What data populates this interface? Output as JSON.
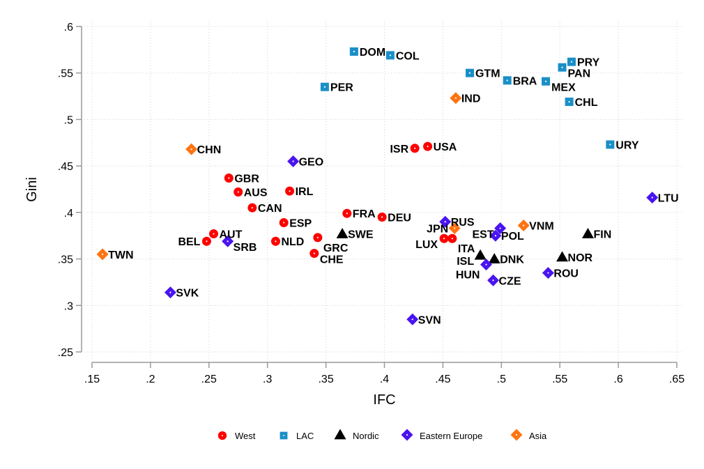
{
  "chart_data": {
    "type": "scatter",
    "title": "",
    "xlabel": "IFC",
    "ylabel": "Gini",
    "xlim": [
      0.15,
      0.65
    ],
    "ylim": [
      0.25,
      0.6
    ],
    "xticks": [
      ".15",
      ".2",
      ".25",
      ".3",
      ".35",
      ".4",
      ".45",
      ".5",
      ".55",
      ".6",
      ".65"
    ],
    "xtick_values": [
      0.15,
      0.2,
      0.25,
      0.3,
      0.35,
      0.4,
      0.45,
      0.5,
      0.55,
      0.6,
      0.65
    ],
    "yticks": [
      ".25",
      ".3",
      ".35",
      ".4",
      ".45",
      ".5",
      ".55",
      ".6"
    ],
    "ytick_values": [
      0.25,
      0.3,
      0.35,
      0.4,
      0.45,
      0.5,
      0.55,
      0.6
    ],
    "grid": true,
    "legend_position": "bottom",
    "series": [
      {
        "name": "West",
        "marker": "circle",
        "color": "#ff0000",
        "points": [
          {
            "label": "USA",
            "x": 0.437,
            "y": 0.471,
            "label_side": "right"
          },
          {
            "label": "ISR",
            "x": 0.426,
            "y": 0.469,
            "label_side": "left"
          },
          {
            "label": "GBR",
            "x": 0.267,
            "y": 0.437,
            "label_side": "right"
          },
          {
            "label": "AUS",
            "x": 0.275,
            "y": 0.422,
            "label_side": "right"
          },
          {
            "label": "IRL",
            "x": 0.319,
            "y": 0.423,
            "label_side": "right"
          },
          {
            "label": "CAN",
            "x": 0.287,
            "y": 0.405,
            "label_side": "right"
          },
          {
            "label": "FRA",
            "x": 0.368,
            "y": 0.399,
            "label_side": "right"
          },
          {
            "label": "DEU",
            "x": 0.398,
            "y": 0.395,
            "label_side": "right"
          },
          {
            "label": "ESP",
            "x": 0.314,
            "y": 0.389,
            "label_side": "right"
          },
          {
            "label": "AUT",
            "x": 0.254,
            "y": 0.377,
            "label_side": "right"
          },
          {
            "label": "BEL",
            "x": 0.248,
            "y": 0.369,
            "label_side": "left"
          },
          {
            "label": "NLD",
            "x": 0.307,
            "y": 0.369,
            "label_side": "right"
          },
          {
            "label": "GRC",
            "x": 0.343,
            "y": 0.373,
            "label_side": "right"
          },
          {
            "label": "CHE",
            "x": 0.34,
            "y": 0.356,
            "label_side": "right"
          },
          {
            "label": "LUX",
            "x": 0.451,
            "y": 0.372,
            "label_side": "left"
          },
          {
            "label": "ITA",
            "x": 0.458,
            "y": 0.372,
            "label_side": "right"
          }
        ]
      },
      {
        "name": "LAC",
        "marker": "square",
        "color": "#1a8fc7",
        "points": [
          {
            "label": "DOM",
            "x": 0.374,
            "y": 0.573,
            "label_side": "right"
          },
          {
            "label": "COL",
            "x": 0.405,
            "y": 0.569,
            "label_side": "right"
          },
          {
            "label": "PER",
            "x": 0.349,
            "y": 0.535,
            "label_side": "right"
          },
          {
            "label": "GTM",
            "x": 0.473,
            "y": 0.55,
            "label_side": "right"
          },
          {
            "label": "BRA",
            "x": 0.505,
            "y": 0.542,
            "label_side": "right"
          },
          {
            "label": "MEX",
            "x": 0.538,
            "y": 0.541,
            "label_side": "right"
          },
          {
            "label": "PAN",
            "x": 0.552,
            "y": 0.556,
            "label_side": "right"
          },
          {
            "label": "PRY",
            "x": 0.56,
            "y": 0.562,
            "label_side": "right"
          },
          {
            "label": "CHL",
            "x": 0.558,
            "y": 0.519,
            "label_side": "right"
          },
          {
            "label": "URY",
            "x": 0.593,
            "y": 0.473,
            "label_side": "right"
          }
        ]
      },
      {
        "name": "Nordic",
        "marker": "triangle",
        "color": "#000000",
        "points": [
          {
            "label": "SWE",
            "x": 0.364,
            "y": 0.377,
            "label_side": "right"
          },
          {
            "label": "ISL",
            "x": 0.482,
            "y": 0.354,
            "label_side": "left"
          },
          {
            "label": "DNK",
            "x": 0.494,
            "y": 0.35,
            "label_side": "right"
          },
          {
            "label": "NOR",
            "x": 0.552,
            "y": 0.352,
            "label_side": "right"
          },
          {
            "label": "FIN",
            "x": 0.574,
            "y": 0.377,
            "label_side": "right"
          }
        ]
      },
      {
        "name": "Eastern Europe",
        "marker": "diamond",
        "color": "#4a14f0",
        "points": [
          {
            "label": "GEO",
            "x": 0.322,
            "y": 0.455,
            "label_side": "right"
          },
          {
            "label": "SRB",
            "x": 0.266,
            "y": 0.369,
            "label_side": "right"
          },
          {
            "label": "RUS",
            "x": 0.452,
            "y": 0.39,
            "label_side": "right"
          },
          {
            "label": "EST",
            "x": 0.499,
            "y": 0.383,
            "label_side": "left"
          },
          {
            "label": "POL",
            "x": 0.495,
            "y": 0.375,
            "label_side": "right"
          },
          {
            "label": "HUN",
            "x": 0.487,
            "y": 0.344,
            "label_side": "left"
          },
          {
            "label": "CZE",
            "x": 0.493,
            "y": 0.327,
            "label_side": "right"
          },
          {
            "label": "ROU",
            "x": 0.54,
            "y": 0.335,
            "label_side": "right"
          },
          {
            "label": "LTU",
            "x": 0.629,
            "y": 0.416,
            "label_side": "right"
          },
          {
            "label": "SVK",
            "x": 0.217,
            "y": 0.314,
            "label_side": "right"
          },
          {
            "label": "SVN",
            "x": 0.424,
            "y": 0.285,
            "label_side": "right"
          }
        ]
      },
      {
        "name": "Asia",
        "marker": "diamond",
        "color": "#ff7410",
        "points": [
          {
            "label": "CHN",
            "x": 0.235,
            "y": 0.468,
            "label_side": "right"
          },
          {
            "label": "IND",
            "x": 0.461,
            "y": 0.523,
            "label_side": "right"
          },
          {
            "label": "JPN",
            "x": 0.46,
            "y": 0.383,
            "label_side": "left"
          },
          {
            "label": "VNM",
            "x": 0.519,
            "y": 0.386,
            "label_side": "right"
          },
          {
            "label": "TWN",
            "x": 0.159,
            "y": 0.355,
            "label_side": "right"
          }
        ]
      }
    ]
  }
}
